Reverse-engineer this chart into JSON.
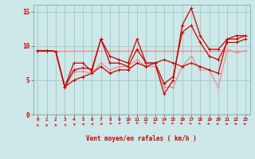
{
  "xlabel": "Vent moyen/en rafales ( km/h )",
  "x": [
    0,
    1,
    2,
    3,
    4,
    5,
    6,
    7,
    8,
    9,
    10,
    11,
    12,
    13,
    14,
    15,
    16,
    17,
    18,
    19,
    20,
    21,
    22,
    23
  ],
  "series1": [
    9.3,
    9.3,
    9.3,
    9.3,
    9.3,
    9.3,
    9.3,
    9.3,
    9.3,
    9.3,
    9.3,
    9.3,
    9.3,
    9.3,
    9.3,
    9.3,
    9.3,
    9.3,
    9.3,
    9.3,
    9.3,
    9.3,
    9.3,
    9.3
  ],
  "series2": [
    9.3,
    9.3,
    9.2,
    4.0,
    7.5,
    7.5,
    6.3,
    11.0,
    8.5,
    8.0,
    7.5,
    11.0,
    7.5,
    7.5,
    8.0,
    7.5,
    7.0,
    7.5,
    7.0,
    6.5,
    6.0,
    11.0,
    11.5,
    11.5
  ],
  "series3": [
    9.3,
    9.3,
    9.2,
    4.0,
    6.2,
    6.3,
    6.0,
    7.5,
    6.5,
    7.0,
    7.0,
    8.0,
    7.0,
    7.0,
    4.0,
    4.0,
    7.0,
    8.5,
    6.5,
    6.5,
    4.0,
    9.5,
    9.0,
    9.3
  ],
  "series4": [
    9.3,
    9.3,
    9.2,
    4.0,
    5.0,
    5.5,
    6.0,
    7.0,
    6.0,
    6.5,
    6.5,
    7.5,
    7.0,
    7.5,
    3.0,
    5.0,
    13.0,
    15.5,
    11.5,
    9.5,
    9.5,
    11.0,
    11.0,
    11.5
  ],
  "series5": [
    9.3,
    9.3,
    9.2,
    4.0,
    6.5,
    6.8,
    6.6,
    11.0,
    7.5,
    7.5,
    7.0,
    9.5,
    7.5,
    7.5,
    4.5,
    5.5,
    12.0,
    13.0,
    10.5,
    8.5,
    8.0,
    10.5,
    10.5,
    11.0
  ],
  "color_light": "#e89090",
  "color_dark": "#cc0000",
  "ylim": [
    0,
    16
  ],
  "xlim": [
    -0.5,
    23.5
  ],
  "bg_color": "#cce8e8",
  "grid_color": "#a8cccc",
  "tick_color": "#cc0000",
  "label_color": "#cc0000",
  "arrow_angles": [
    180,
    180,
    180,
    210,
    240,
    255,
    270,
    285,
    315,
    330,
    350,
    355,
    5,
    15,
    25,
    35,
    40,
    45,
    50,
    55,
    60,
    65,
    70,
    75
  ]
}
